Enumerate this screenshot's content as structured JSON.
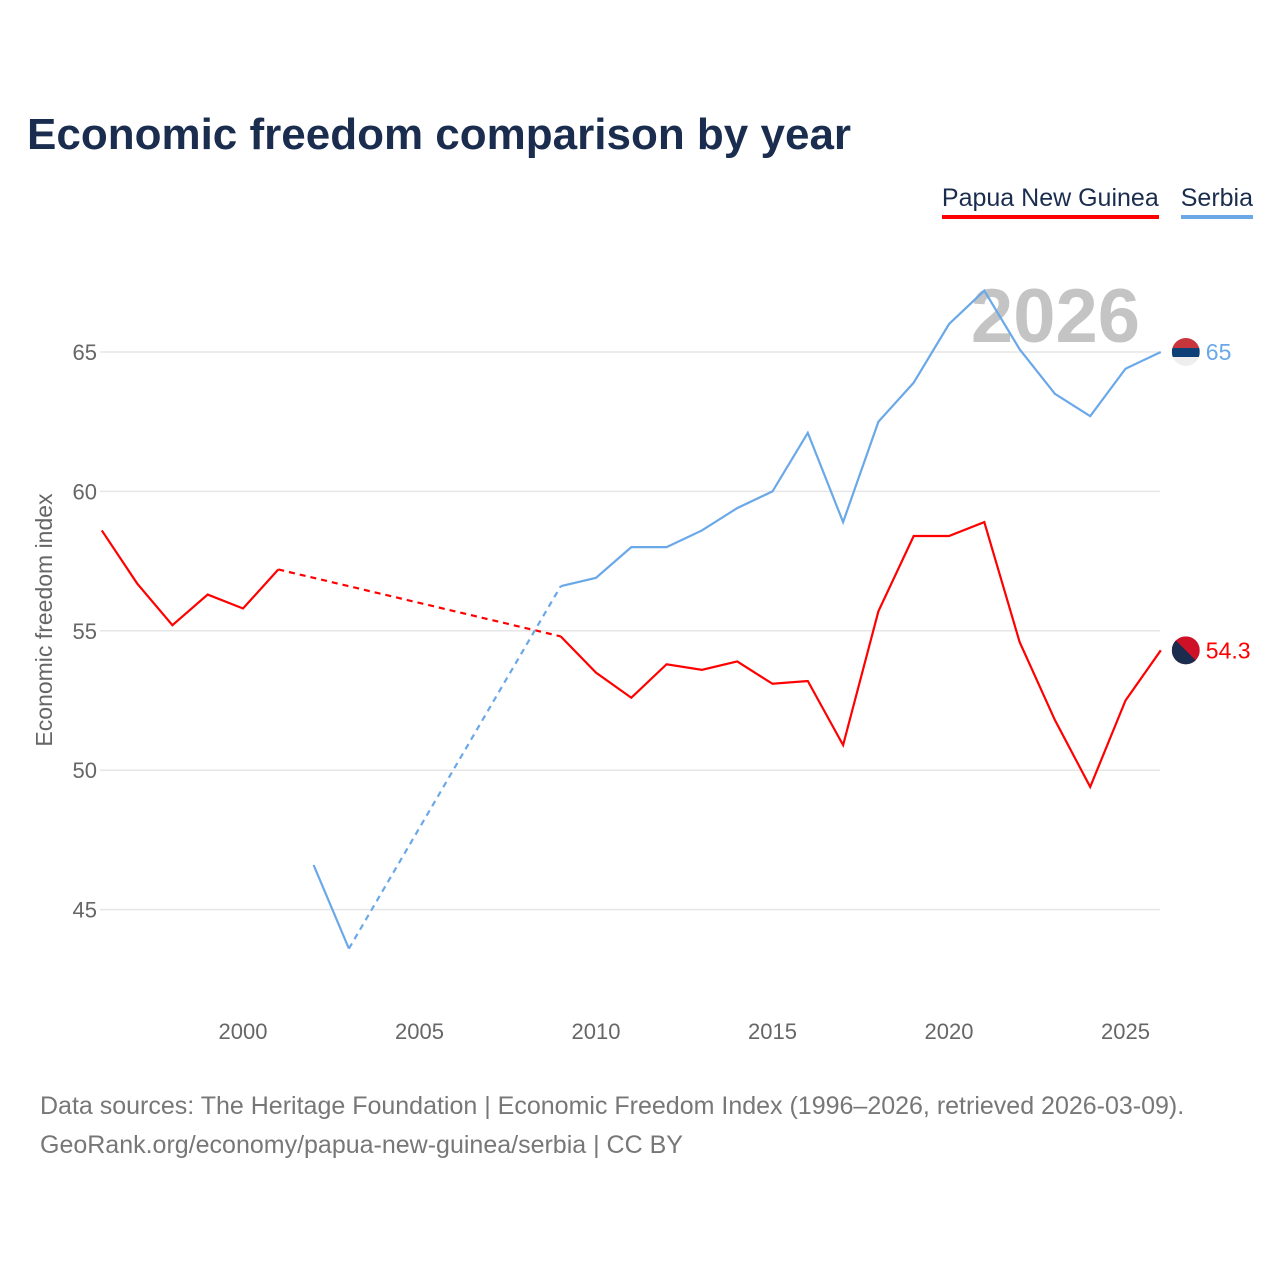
{
  "title": "Economic freedom comparison by year",
  "footer": {
    "line1": "Data sources: The Heritage Foundation | Economic Freedom Index (1996–2026, retrieved 2026-03-09).",
    "line2": "GeoRank.org/economy/papua-new-guinea/serbia | CC BY"
  },
  "chart_data": {
    "type": "line",
    "title": "Economic freedom comparison by year",
    "xlabel": "",
    "ylabel": "Economic freedom index",
    "year_watermark": "2026",
    "xlim": [
      1996,
      2026
    ],
    "ylim": [
      42,
      68
    ],
    "xticks": [
      2000,
      2005,
      2010,
      2015,
      2020,
      2025
    ],
    "yticks": [
      45,
      50,
      55,
      60,
      65
    ],
    "grid": true,
    "legend_position": "top-right",
    "x": [
      1996,
      1997,
      1998,
      1999,
      2000,
      2001,
      2002,
      2003,
      2004,
      2005,
      2006,
      2007,
      2008,
      2009,
      2010,
      2011,
      2012,
      2013,
      2014,
      2015,
      2016,
      2017,
      2018,
      2019,
      2020,
      2021,
      2022,
      2023,
      2024,
      2025,
      2026
    ],
    "series": [
      {
        "name": "Papua New Guinea",
        "color": "#ff0000",
        "end_label": "54.3",
        "values": [
          58.6,
          56.7,
          55.2,
          56.3,
          55.8,
          57.2,
          null,
          null,
          null,
          null,
          null,
          null,
          null,
          54.8,
          53.5,
          52.6,
          53.8,
          53.6,
          53.9,
          53.1,
          53.2,
          50.9,
          55.7,
          58.4,
          58.4,
          58.9,
          54.6,
          51.8,
          49.4,
          52.5,
          54.3
        ]
      },
      {
        "name": "Serbia",
        "color": "#6aa8e8",
        "end_label": "65",
        "values": [
          null,
          null,
          null,
          null,
          null,
          null,
          46.6,
          43.6,
          null,
          null,
          null,
          null,
          null,
          56.6,
          56.9,
          58.0,
          58.0,
          58.6,
          59.4,
          60.0,
          62.1,
          58.9,
          62.5,
          63.9,
          66.0,
          67.2,
          65.1,
          63.5,
          62.7,
          64.4,
          65.0
        ]
      }
    ]
  }
}
